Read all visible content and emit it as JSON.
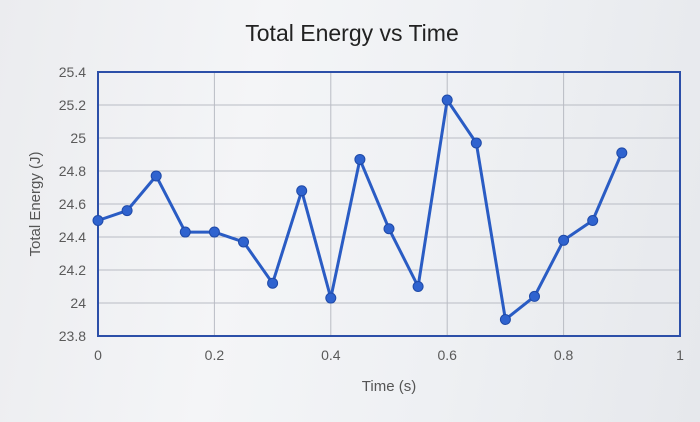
{
  "chart_data": {
    "type": "line",
    "title": "Total Energy vs Time",
    "xlabel": "Time (s)",
    "ylabel": "Total Energy (J)",
    "xlim": [
      0,
      1
    ],
    "ylim": [
      23.8,
      25.4
    ],
    "x_ticks": [
      {
        "value": 0,
        "label": "0"
      },
      {
        "value": 0.2,
        "label": "0.2"
      },
      {
        "value": 0.4,
        "label": "0.4"
      },
      {
        "value": 0.6,
        "label": "0.6"
      },
      {
        "value": 0.8,
        "label": "0.8"
      },
      {
        "value": 1,
        "label": "1"
      }
    ],
    "y_ticks": [
      {
        "value": 23.8,
        "label": "23.8"
      },
      {
        "value": 24,
        "label": "24"
      },
      {
        "value": 24.2,
        "label": "24.2"
      },
      {
        "value": 24.4,
        "label": "24.4"
      },
      {
        "value": 24.6,
        "label": "24.6"
      },
      {
        "value": 24.8,
        "label": "24.8"
      },
      {
        "value": 25,
        "label": "25"
      },
      {
        "value": 25.2,
        "label": "25.2"
      },
      {
        "value": 25.4,
        "label": "25.4"
      }
    ],
    "grid": true,
    "legend": "none",
    "colors": {
      "series": "#2a5cc4",
      "marker": "#2f63cf",
      "frame": "#2c4fa8",
      "grid": "#b9bcc4"
    },
    "series": [
      {
        "x": [
          0,
          0.05,
          0.1,
          0.15,
          0.2,
          0.25,
          0.3,
          0.35,
          0.4,
          0.45,
          0.5,
          0.55,
          0.6,
          0.65,
          0.7,
          0.75,
          0.8,
          0.85,
          0.9
        ],
        "y": [
          24.5,
          24.56,
          24.77,
          24.43,
          24.43,
          24.37,
          24.12,
          24.68,
          24.03,
          24.87,
          24.45,
          24.1,
          25.23,
          24.97,
          23.9,
          24.04,
          24.38,
          24.5,
          24.91
        ]
      }
    ]
  }
}
